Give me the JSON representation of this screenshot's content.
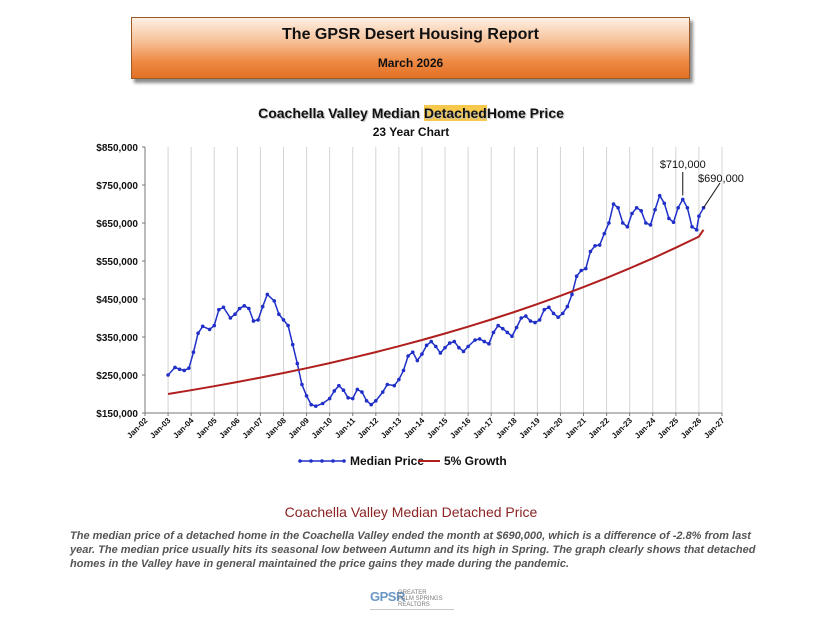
{
  "banner": {
    "title": "The GPSR Desert Housing Report",
    "date": "March 2026"
  },
  "chart_data": {
    "type": "line",
    "title_parts": [
      "Coachella Valley Median ",
      "Detached",
      "Home Price"
    ],
    "subtitle": "23 Year Chart",
    "x_tick_labels": [
      "Jan-02",
      "Jan-03",
      "Jan-04",
      "Jan-05",
      "Jan-06",
      "Jan-07",
      "Jan-08",
      "Jan-09",
      "Jan-10",
      "Jan-11",
      "Jan-12",
      "Jan-13",
      "Jan-14",
      "Jan-15",
      "Jan-16",
      "Jan-17",
      "Jan-18",
      "Jan-19",
      "Jan-20",
      "Jan-21",
      "Jan-22",
      "Jan-23",
      "Jan-24",
      "Jan-25",
      "Jan-26",
      "Jan-27"
    ],
    "x_range": [
      2002,
      2027
    ],
    "y_range": [
      150000,
      850000
    ],
    "y_ticks": [
      150000,
      250000,
      350000,
      450000,
      550000,
      650000,
      750000,
      850000
    ],
    "y_tick_labels": [
      "$150,000",
      "$250,000",
      "$350,000",
      "$450,000",
      "$550,000",
      "$650,000",
      "$750,000",
      "$850,000"
    ],
    "grid": "vertical",
    "legend_position": "bottom",
    "series": [
      {
        "name": "Median Price",
        "color": "#1f2fc8",
        "style": "line-with-markers",
        "points": [
          [
            2003.0,
            250000
          ],
          [
            2003.3,
            270000
          ],
          [
            2003.5,
            265000
          ],
          [
            2003.7,
            262000
          ],
          [
            2003.9,
            268000
          ],
          [
            2004.1,
            310000
          ],
          [
            2004.3,
            360000
          ],
          [
            2004.5,
            378000
          ],
          [
            2004.8,
            370000
          ],
          [
            2005.0,
            380000
          ],
          [
            2005.2,
            422000
          ],
          [
            2005.4,
            428000
          ],
          [
            2005.7,
            400000
          ],
          [
            2005.9,
            410000
          ],
          [
            2006.1,
            425000
          ],
          [
            2006.3,
            432000
          ],
          [
            2006.5,
            425000
          ],
          [
            2006.7,
            392000
          ],
          [
            2006.9,
            395000
          ],
          [
            2007.1,
            430000
          ],
          [
            2007.3,
            462000
          ],
          [
            2007.6,
            445000
          ],
          [
            2007.8,
            410000
          ],
          [
            2008.0,
            395000
          ],
          [
            2008.2,
            380000
          ],
          [
            2008.4,
            330000
          ],
          [
            2008.6,
            280000
          ],
          [
            2008.8,
            225000
          ],
          [
            2009.0,
            195000
          ],
          [
            2009.2,
            172000
          ],
          [
            2009.4,
            168000
          ],
          [
            2009.7,
            175000
          ],
          [
            2010.0,
            188000
          ],
          [
            2010.2,
            208000
          ],
          [
            2010.4,
            222000
          ],
          [
            2010.6,
            210000
          ],
          [
            2010.8,
            190000
          ],
          [
            2011.0,
            188000
          ],
          [
            2011.2,
            212000
          ],
          [
            2011.4,
            205000
          ],
          [
            2011.6,
            182000
          ],
          [
            2011.8,
            172000
          ],
          [
            2012.0,
            182000
          ],
          [
            2012.3,
            205000
          ],
          [
            2012.5,
            225000
          ],
          [
            2012.8,
            222000
          ],
          [
            2013.0,
            238000
          ],
          [
            2013.2,
            262000
          ],
          [
            2013.4,
            300000
          ],
          [
            2013.6,
            310000
          ],
          [
            2013.8,
            288000
          ],
          [
            2014.0,
            305000
          ],
          [
            2014.2,
            328000
          ],
          [
            2014.4,
            338000
          ],
          [
            2014.6,
            325000
          ],
          [
            2014.8,
            308000
          ],
          [
            2015.0,
            322000
          ],
          [
            2015.2,
            334000
          ],
          [
            2015.4,
            338000
          ],
          [
            2015.6,
            322000
          ],
          [
            2015.8,
            312000
          ],
          [
            2016.0,
            325000
          ],
          [
            2016.3,
            342000
          ],
          [
            2016.5,
            345000
          ],
          [
            2016.7,
            338000
          ],
          [
            2016.9,
            332000
          ],
          [
            2017.1,
            362000
          ],
          [
            2017.3,
            380000
          ],
          [
            2017.5,
            372000
          ],
          [
            2017.7,
            362000
          ],
          [
            2017.9,
            352000
          ],
          [
            2018.1,
            375000
          ],
          [
            2018.3,
            400000
          ],
          [
            2018.5,
            405000
          ],
          [
            2018.7,
            392000
          ],
          [
            2018.9,
            388000
          ],
          [
            2019.1,
            395000
          ],
          [
            2019.3,
            422000
          ],
          [
            2019.5,
            428000
          ],
          [
            2019.7,
            412000
          ],
          [
            2019.9,
            402000
          ],
          [
            2020.1,
            412000
          ],
          [
            2020.3,
            430000
          ],
          [
            2020.5,
            462000
          ],
          [
            2020.7,
            510000
          ],
          [
            2020.9,
            525000
          ],
          [
            2021.1,
            530000
          ],
          [
            2021.3,
            575000
          ],
          [
            2021.5,
            590000
          ],
          [
            2021.7,
            592000
          ],
          [
            2021.9,
            622000
          ],
          [
            2022.1,
            650000
          ],
          [
            2022.3,
            700000
          ],
          [
            2022.5,
            690000
          ],
          [
            2022.7,
            650000
          ],
          [
            2022.9,
            640000
          ],
          [
            2023.1,
            675000
          ],
          [
            2023.3,
            690000
          ],
          [
            2023.5,
            682000
          ],
          [
            2023.7,
            650000
          ],
          [
            2023.9,
            645000
          ],
          [
            2024.1,
            685000
          ],
          [
            2024.3,
            722000
          ],
          [
            2024.5,
            702000
          ],
          [
            2024.7,
            662000
          ],
          [
            2024.9,
            652000
          ],
          [
            2025.1,
            690000
          ],
          [
            2025.3,
            712000
          ],
          [
            2025.5,
            690000
          ],
          [
            2025.7,
            640000
          ],
          [
            2025.9,
            632000
          ],
          [
            2026.0,
            668000
          ],
          [
            2026.2,
            690000
          ]
        ]
      },
      {
        "name": "5% Growth",
        "color": "#b01e1e",
        "style": "line",
        "points": [
          [
            2003.0,
            200000
          ],
          [
            2004.0,
            210000
          ],
          [
            2005.0,
            220500
          ],
          [
            2006.0,
            231500
          ],
          [
            2007.0,
            243100
          ],
          [
            2008.0,
            255300
          ],
          [
            2009.0,
            268000
          ],
          [
            2010.0,
            281400
          ],
          [
            2011.0,
            295500
          ],
          [
            2012.0,
            310300
          ],
          [
            2013.0,
            325800
          ],
          [
            2014.0,
            342100
          ],
          [
            2015.0,
            359200
          ],
          [
            2016.0,
            377100
          ],
          [
            2017.0,
            396000
          ],
          [
            2018.0,
            415800
          ],
          [
            2019.0,
            436600
          ],
          [
            2020.0,
            458400
          ],
          [
            2021.0,
            481300
          ],
          [
            2022.0,
            505400
          ],
          [
            2023.0,
            530700
          ],
          [
            2024.0,
            557200
          ],
          [
            2025.0,
            585000
          ],
          [
            2026.0,
            614300
          ],
          [
            2026.2,
            632000
          ]
        ]
      }
    ],
    "annotations": [
      {
        "text": "$710,000",
        "x": 2025.3,
        "y": 712000
      },
      {
        "text": "$690,000",
        "x": 2026.2,
        "y": 690000
      }
    ]
  },
  "section_title": "Coachella Valley Median Detached Price",
  "paragraph": "The median price of a detached home in the Coachella Valley ended the month at $690,000, which is a difference of -2.8% from last year. The median price usually hits its seasonal low between Autumn and its high in Spring. The graph clearly shows that detached homes in the Valley have in general maintained the price gains they made during the pandemic.",
  "logo": {
    "mark": "GPSR",
    "text": "GREATER\nPALM SPRINGS\nREALTORS"
  }
}
